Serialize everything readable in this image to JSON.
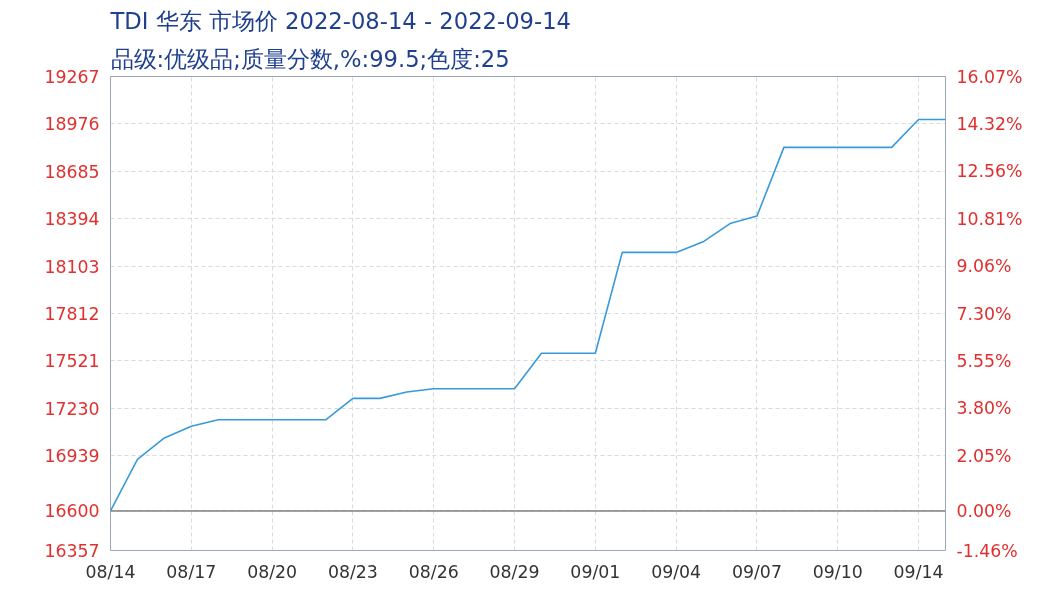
{
  "chart_data": {
    "type": "line",
    "title": "TDI 华东 市场价 2022-08-14 - 2022-09-14",
    "subtitle": "品级:优级品;质量分数,%:99.5;色度:25",
    "categories": [
      "08/14",
      null,
      null,
      "08/17",
      null,
      null,
      "08/20",
      null,
      null,
      "08/23",
      null,
      null,
      "08/26",
      null,
      null,
      "08/29",
      null,
      null,
      "09/01",
      null,
      null,
      "09/04",
      null,
      null,
      "09/07",
      null,
      null,
      "09/10",
      null,
      null,
      "09/14",
      null
    ],
    "series": [
      {
        "color": "#3a9ad9",
        "values": [
          16600,
          16916,
          17048,
          17120,
          17160,
          17160,
          17160,
          17160,
          17160,
          17291,
          17291,
          17330,
          17350,
          17350,
          17350,
          17350,
          17568,
          17568,
          17568,
          18187,
          18187,
          18187,
          18252,
          18364,
          18410,
          18832,
          18832,
          18832,
          18832,
          18832,
          19003,
          19003
        ]
      }
    ],
    "ylim": [
      16357,
      19267
    ],
    "yticks": [
      16357,
      16600,
      16939,
      17230,
      17521,
      17812,
      18103,
      18394,
      18685,
      18976,
      19267
    ],
    "y2lim": [
      -1.46,
      16.07
    ],
    "y2ticks": [
      {
        "value": -1.46,
        "label": "-1.46%"
      },
      {
        "value": 0,
        "label": "0.00%"
      },
      {
        "value": 2.05,
        "label": "2.05%"
      },
      {
        "value": 3.8,
        "label": "3.80%"
      },
      {
        "value": 5.55,
        "label": "5.55%"
      },
      {
        "value": 7.3,
        "label": "7.30%"
      },
      {
        "value": 9.06,
        "label": "9.06%"
      },
      {
        "value": 10.81,
        "label": "10.81%"
      },
      {
        "value": 12.56,
        "label": "12.56%"
      },
      {
        "value": 14.32,
        "label": "14.32%"
      },
      {
        "value": 16.07,
        "label": "16.07%"
      }
    ],
    "ref_lines": [
      {
        "axis": "y",
        "value": 16600,
        "color": "#808080"
      }
    ],
    "grid": true,
    "marker": "none",
    "line_style": "solid"
  }
}
